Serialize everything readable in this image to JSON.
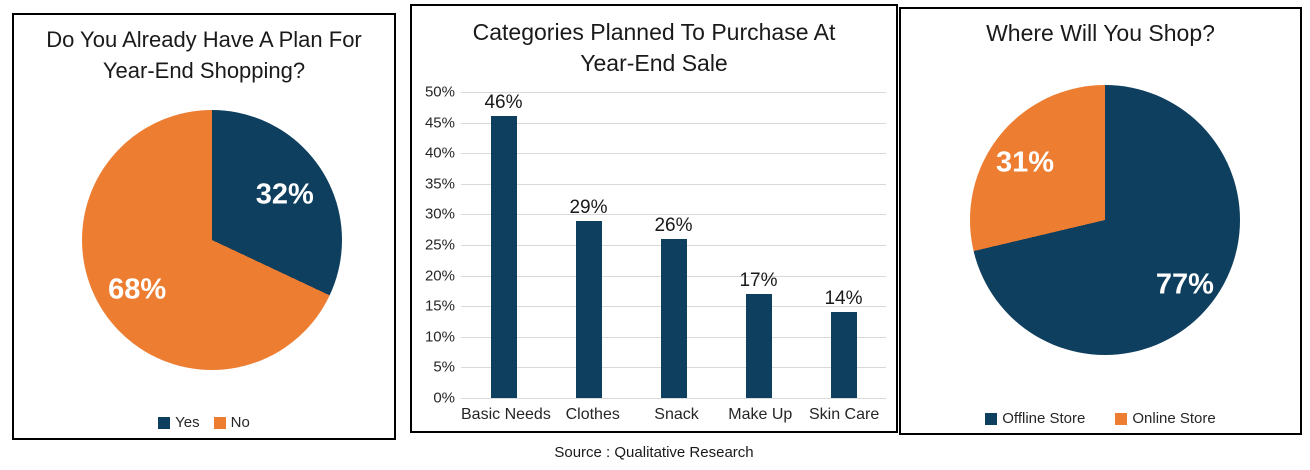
{
  "page": {
    "background": "#FFFFFF",
    "source_note": "Source : Qualitative Research"
  },
  "colors": {
    "dark_blue": "#0E3F5E",
    "orange": "#ED7D31",
    "grid": "#D9D9D9",
    "panel_border": "#000000",
    "pie_label_text": "#FFFFFF"
  },
  "chart_data": [
    {
      "type": "pie",
      "title": "Do You Already Have A Plan For Year-End Shopping?",
      "start_angle_deg": 0,
      "legend_position": "bottom",
      "slices": [
        {
          "label": "Yes",
          "value": 32,
          "display": "32%",
          "color": "#0E3F5E"
        },
        {
          "label": "No",
          "value": 68,
          "display": "68%",
          "color": "#ED7D31"
        }
      ]
    },
    {
      "type": "bar",
      "title": "Categories Planned To Purchase At Year-End Sale",
      "categories": [
        "Basic Needs",
        "Clothes",
        "Snack",
        "Make Up",
        "Skin Care"
      ],
      "values": [
        46,
        29,
        26,
        17,
        14
      ],
      "value_labels": [
        "46%",
        "29%",
        "26%",
        "17%",
        "14%"
      ],
      "bar_color": "#0E3F5E",
      "xlabel": "",
      "ylabel": "",
      "ylim": [
        0,
        50
      ],
      "y_ticks": [
        "50%",
        "45%",
        "40%",
        "35%",
        "30%",
        "25%",
        "20%",
        "15%",
        "10%",
        "5%",
        "0%"
      ],
      "grid": true,
      "legend": "none"
    },
    {
      "type": "pie",
      "title": "Where Will You Shop?",
      "start_angle_deg": 0,
      "legend_position": "bottom",
      "slices": [
        {
          "label": "Offline Store",
          "value": 77,
          "display": "77%",
          "color": "#0E3F5E"
        },
        {
          "label": "Online Store",
          "value": 31,
          "display": "31%",
          "color": "#ED7D31"
        }
      ]
    }
  ]
}
